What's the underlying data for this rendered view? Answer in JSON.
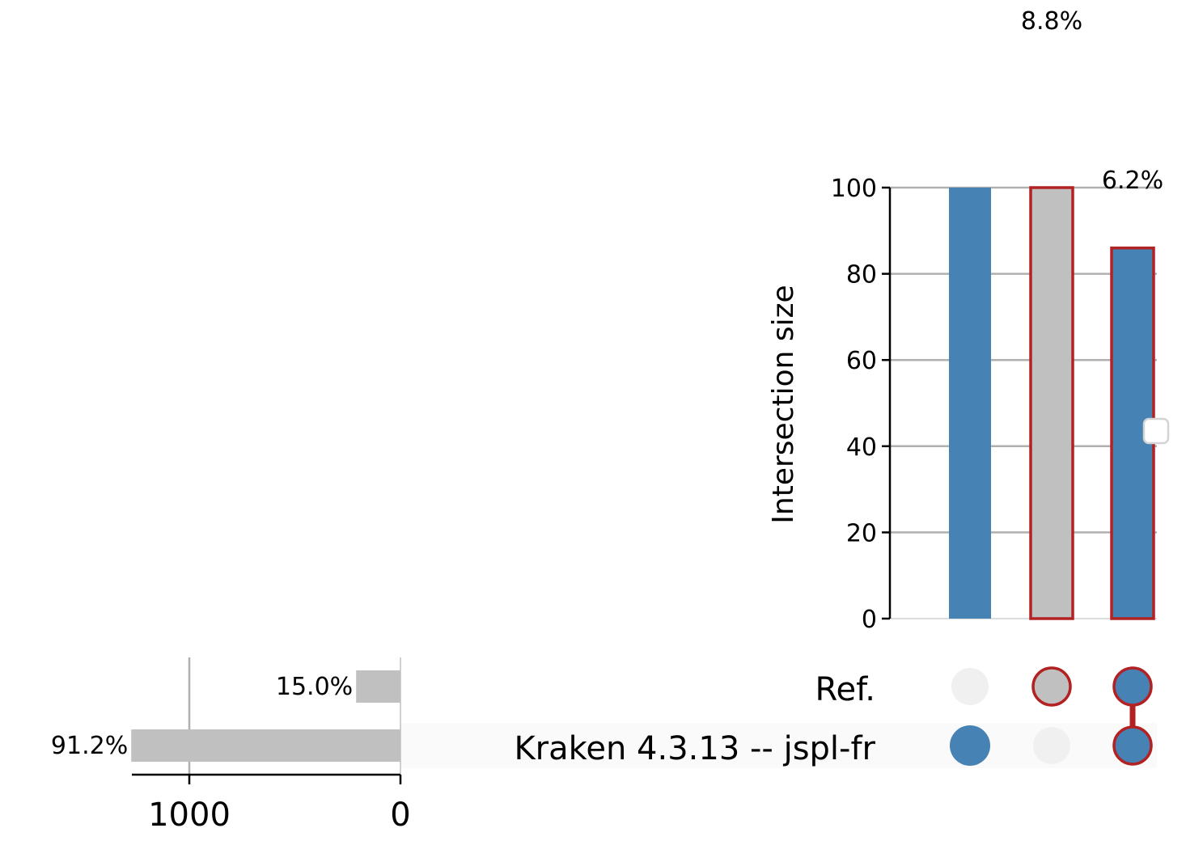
{
  "chart_data": {
    "type": "bar",
    "kind": "upset",
    "ylabel": "Intersection size",
    "ylim": [
      0,
      100
    ],
    "yticks": [
      "0",
      "20",
      "40",
      "60",
      "80",
      "100"
    ],
    "ytick_values": [
      0,
      20,
      40,
      60,
      80,
      100
    ],
    "grid": true,
    "intersections": [
      {
        "members": [
          false,
          true
        ],
        "value": 100,
        "label": "",
        "color": "#4682b4",
        "highlight": false
      },
      {
        "members": [
          true,
          false
        ],
        "value": 100,
        "label": "8.8%",
        "color": "#c0c0c0",
        "highlight": true
      },
      {
        "members": [
          true,
          true
        ],
        "value": 86,
        "label": "6.2%",
        "color": "#4682b4",
        "highlight": true
      }
    ],
    "sets": [
      {
        "name": "Ref.",
        "size": 210,
        "label": "15.0%"
      },
      {
        "name": "Kraken 4.3.13 -- jspl-fr",
        "size": 1275,
        "label": "91.2%"
      }
    ],
    "set_size_ticks": [
      "1000",
      "0"
    ],
    "set_size_tick_values": [
      1000,
      0
    ],
    "set_size_max": 1275,
    "colors": {
      "member": "#4682b4",
      "highlight_edge": "#b22222",
      "inactive_dot": "#f0f0f0",
      "set_bar": "#c0c0c0",
      "grid": "#b0b0b0"
    }
  }
}
